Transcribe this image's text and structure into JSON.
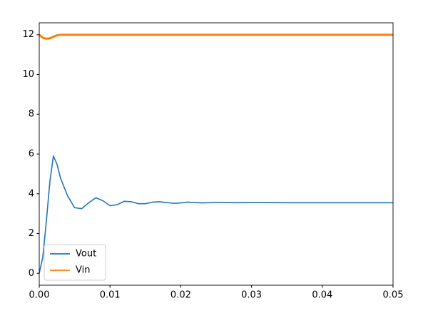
{
  "chart_data": {
    "type": "line",
    "x": [
      0,
      0.0005,
      0.001,
      0.0015,
      0.002,
      0.0025,
      0.003,
      0.004,
      0.005,
      0.006,
      0.007,
      0.008,
      0.009,
      0.01,
      0.011,
      0.012,
      0.013,
      0.014,
      0.015,
      0.016,
      0.017,
      0.018,
      0.019,
      0.02,
      0.021,
      0.022,
      0.023,
      0.024,
      0.025,
      0.026,
      0.028,
      0.03,
      0.035,
      0.04,
      0.045,
      0.05
    ],
    "series": [
      {
        "name": "Vout",
        "color": "#1f77b4",
        "values": [
          0,
          0.8,
          2.6,
          4.6,
          5.9,
          5.5,
          4.8,
          3.9,
          3.3,
          3.25,
          3.55,
          3.8,
          3.65,
          3.4,
          3.45,
          3.62,
          3.6,
          3.5,
          3.5,
          3.58,
          3.6,
          3.56,
          3.52,
          3.54,
          3.58,
          3.56,
          3.54,
          3.55,
          3.57,
          3.56,
          3.55,
          3.56,
          3.55,
          3.55,
          3.55,
          3.55
        ]
      },
      {
        "name": "Vin",
        "color": "#ff7f0e",
        "values": [
          12,
          11.85,
          11.8,
          11.82,
          11.9,
          11.97,
          12,
          12,
          12,
          12,
          12,
          12,
          12,
          12,
          12,
          12,
          12,
          12,
          12,
          12,
          12,
          12,
          12,
          12,
          12,
          12,
          12,
          12,
          12,
          12,
          12,
          12,
          12,
          12,
          12,
          12
        ]
      }
    ],
    "xlim": [
      0,
      0.05
    ],
    "xticks": [
      {
        "value": 0,
        "label": "0.00"
      },
      {
        "value": 0.01,
        "label": "0.01"
      },
      {
        "value": 0.02,
        "label": "0.02"
      },
      {
        "value": 0.03,
        "label": "0.03"
      },
      {
        "value": 0.04,
        "label": "0.04"
      },
      {
        "value": 0.05,
        "label": "0.05"
      }
    ],
    "ylim": [
      -0.6,
      12.6
    ],
    "yticks": [
      0,
      2,
      4,
      6,
      8,
      10,
      12
    ],
    "legend": "lower left"
  }
}
